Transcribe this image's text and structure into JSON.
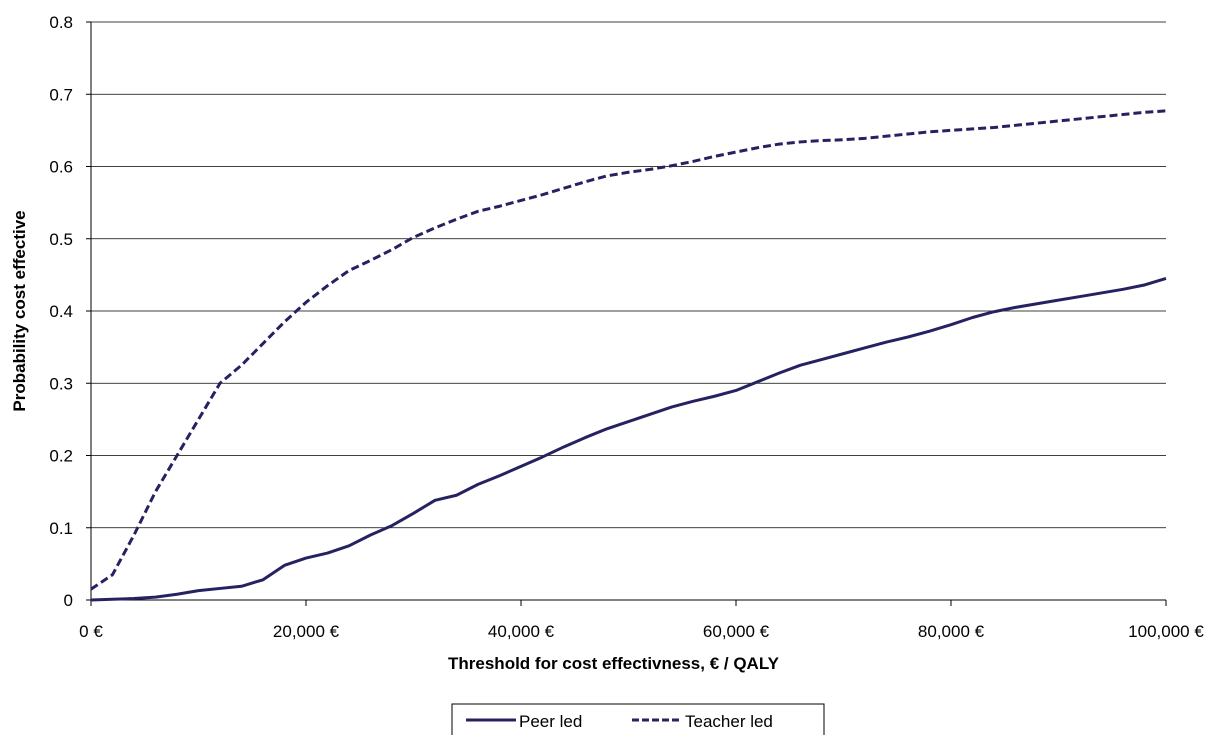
{
  "chart_data": {
    "type": "line",
    "title": "",
    "xlabel": "Threshold for cost effectivness, € / QALY",
    "ylabel": "Probability cost effective",
    "xlim": [
      0,
      100000
    ],
    "ylim": [
      0,
      0.8
    ],
    "x_ticks": [
      0,
      20000,
      40000,
      60000,
      80000,
      100000
    ],
    "x_tick_labels": [
      "0 €",
      "20,000 €",
      "40,000 €",
      "60,000 €",
      "80,000 €",
      "100,000 €"
    ],
    "y_ticks": [
      0,
      0.1,
      0.2,
      0.3,
      0.4,
      0.5,
      0.6,
      0.7,
      0.8
    ],
    "y_tick_labels": [
      "0",
      "0.1",
      "0.2",
      "0.3",
      "0.4",
      "0.5",
      "0.6",
      "0.7",
      "0.8"
    ],
    "grid": "horizontal",
    "legend_position": "bottom",
    "series": [
      {
        "name": "Peer led",
        "color": "#262262",
        "dash": "solid",
        "x": [
          0,
          2000,
          4000,
          6000,
          8000,
          10000,
          12000,
          14000,
          16000,
          18000,
          20000,
          22000,
          24000,
          26000,
          28000,
          30000,
          32000,
          34000,
          36000,
          38000,
          40000,
          42000,
          44000,
          46000,
          48000,
          50000,
          52000,
          54000,
          56000,
          58000,
          60000,
          62000,
          64000,
          66000,
          68000,
          70000,
          72000,
          74000,
          76000,
          78000,
          80000,
          82000,
          84000,
          86000,
          88000,
          90000,
          92000,
          94000,
          96000,
          98000,
          100000
        ],
        "y": [
          0,
          0.001,
          0.002,
          0.004,
          0.008,
          0.013,
          0.016,
          0.019,
          0.028,
          0.048,
          0.058,
          0.065,
          0.075,
          0.09,
          0.103,
          0.12,
          0.138,
          0.145,
          0.16,
          0.172,
          0.185,
          0.198,
          0.212,
          0.225,
          0.237,
          0.247,
          0.257,
          0.267,
          0.275,
          0.282,
          0.29,
          0.302,
          0.314,
          0.325,
          0.333,
          0.341,
          0.349,
          0.357,
          0.364,
          0.372,
          0.381,
          0.391,
          0.399,
          0.405,
          0.41,
          0.415,
          0.42,
          0.425,
          0.43,
          0.436,
          0.445
        ]
      },
      {
        "name": "Teacher led",
        "color": "#262262",
        "dash": "dashed",
        "x": [
          0,
          2000,
          4000,
          6000,
          8000,
          10000,
          12000,
          14000,
          16000,
          18000,
          20000,
          22000,
          24000,
          26000,
          28000,
          30000,
          32000,
          34000,
          36000,
          38000,
          40000,
          42000,
          44000,
          46000,
          48000,
          50000,
          52000,
          54000,
          56000,
          58000,
          60000,
          62000,
          64000,
          66000,
          68000,
          70000,
          72000,
          74000,
          76000,
          78000,
          80000,
          82000,
          84000,
          86000,
          88000,
          90000,
          92000,
          94000,
          96000,
          98000,
          100000
        ],
        "y": [
          0.015,
          0.035,
          0.09,
          0.15,
          0.2,
          0.25,
          0.3,
          0.325,
          0.355,
          0.385,
          0.412,
          0.435,
          0.456,
          0.47,
          0.485,
          0.502,
          0.515,
          0.527,
          0.538,
          0.545,
          0.553,
          0.561,
          0.57,
          0.579,
          0.587,
          0.592,
          0.596,
          0.601,
          0.607,
          0.614,
          0.62,
          0.626,
          0.631,
          0.634,
          0.636,
          0.637,
          0.639,
          0.642,
          0.645,
          0.648,
          0.65,
          0.652,
          0.654,
          0.657,
          0.66,
          0.663,
          0.666,
          0.669,
          0.672,
          0.675,
          0.677
        ]
      }
    ]
  }
}
